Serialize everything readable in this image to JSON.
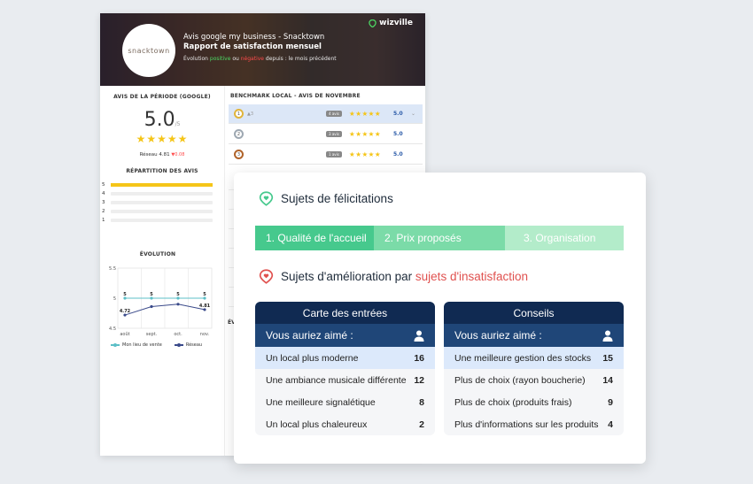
{
  "report": {
    "logo_text": "snacktown",
    "brand": "wizville",
    "title_line1": "Avis google my business - Snacktown",
    "title_line2": "Rapport de satisfaction mensuel",
    "subtitle_prefix": "Évolution ",
    "subtitle_positive": "positive",
    "subtitle_mid": " ou ",
    "subtitle_negative": "négative",
    "subtitle_suffix": " depuis : le mois précédent",
    "period_title": "AVIS DE LA PÉRIODE (GOOGLE)",
    "score": "5.0",
    "score_suffix": "/5",
    "rating_stars": 5,
    "network_label": "Réseau 4.81",
    "network_delta": "▼0.08",
    "distribution_title": "RÉPARTITION DES AVIS",
    "distribution": [
      {
        "label": "5",
        "fraction": 1.0
      },
      {
        "label": "4",
        "fraction": 0
      },
      {
        "label": "3",
        "fraction": 0
      },
      {
        "label": "2",
        "fraction": 0
      },
      {
        "label": "1",
        "fraction": 0
      }
    ],
    "evolution_title": "ÉVOLUTION",
    "evolution_cut_title": "ÉV",
    "benchmark_title": "BENCHMARK LOCAL - AVIS DE NOVEMBRE",
    "benchmark": [
      {
        "rank": "1",
        "delta": "▲3",
        "avis": "4 avis",
        "score": "5.0",
        "stars": 5,
        "medal_color": "#e0b43a"
      },
      {
        "rank": "2",
        "delta": "",
        "avis": "3 avis",
        "score": "5.0",
        "stars": 5,
        "medal_color": "#9ea8b2"
      },
      {
        "rank": "3",
        "delta": "",
        "avis": "1 avis",
        "score": "5.0",
        "stars": 5,
        "medal_color": "#b0632a"
      }
    ],
    "chevron": "⌄"
  },
  "chart_data": {
    "type": "line",
    "title": "ÉVOLUTION",
    "categories": [
      "août",
      "sept.",
      "oct.",
      "nov."
    ],
    "series": [
      {
        "name": "Mon lieu de vente",
        "values": [
          5,
          5,
          5,
          5
        ],
        "color": "#5cbfc7"
      },
      {
        "name": "Réseau",
        "values": [
          4.72,
          4.86,
          4.9,
          4.81
        ],
        "color": "#3a4a8a"
      }
    ],
    "ylim": [
      4.5,
      5.5
    ],
    "yticks": [
      "5.5",
      "5",
      "4.5"
    ],
    "data_labels": [
      "5",
      "5",
      "5",
      "5",
      "4.72",
      "4.81"
    ],
    "legend_placement": "bottom"
  },
  "felicitations": {
    "title": "Sujets de félicitations",
    "steps": [
      "1.  Qualité de l'accueil",
      "2.  Prix proposés",
      "3. Organisation"
    ]
  },
  "amelioration": {
    "title_prefix": "Sujets d'amélioration par ",
    "title_accent": "sujets d'insatisfaction"
  },
  "tables": [
    {
      "header": "Carte des entrées",
      "sub": "Vous auriez aimé :",
      "rows": [
        {
          "label": "Un local plus moderne",
          "count": "16"
        },
        {
          "label": "Une ambiance musicale différente",
          "count": "12"
        },
        {
          "label": "Une meilleure signalétique",
          "count": "8"
        },
        {
          "label": "Un local plus chaleureux",
          "count": "2"
        }
      ]
    },
    {
      "header": "Conseils",
      "sub": "Vous auriez aimé :",
      "rows": [
        {
          "label": "Une meilleure gestion des stocks",
          "count": "15"
        },
        {
          "label": "Plus de choix (rayon boucherie)",
          "count": "14"
        },
        {
          "label": "Plus de choix (produits frais)",
          "count": "9"
        },
        {
          "label": "Plus d'informations sur les produits",
          "count": "4"
        }
      ]
    }
  ],
  "colors": {
    "positive": "#4cd964",
    "negative": "#ff4b4b",
    "accent": "#e0514f",
    "navy": "#102a52",
    "green_step": "#46c98d"
  }
}
